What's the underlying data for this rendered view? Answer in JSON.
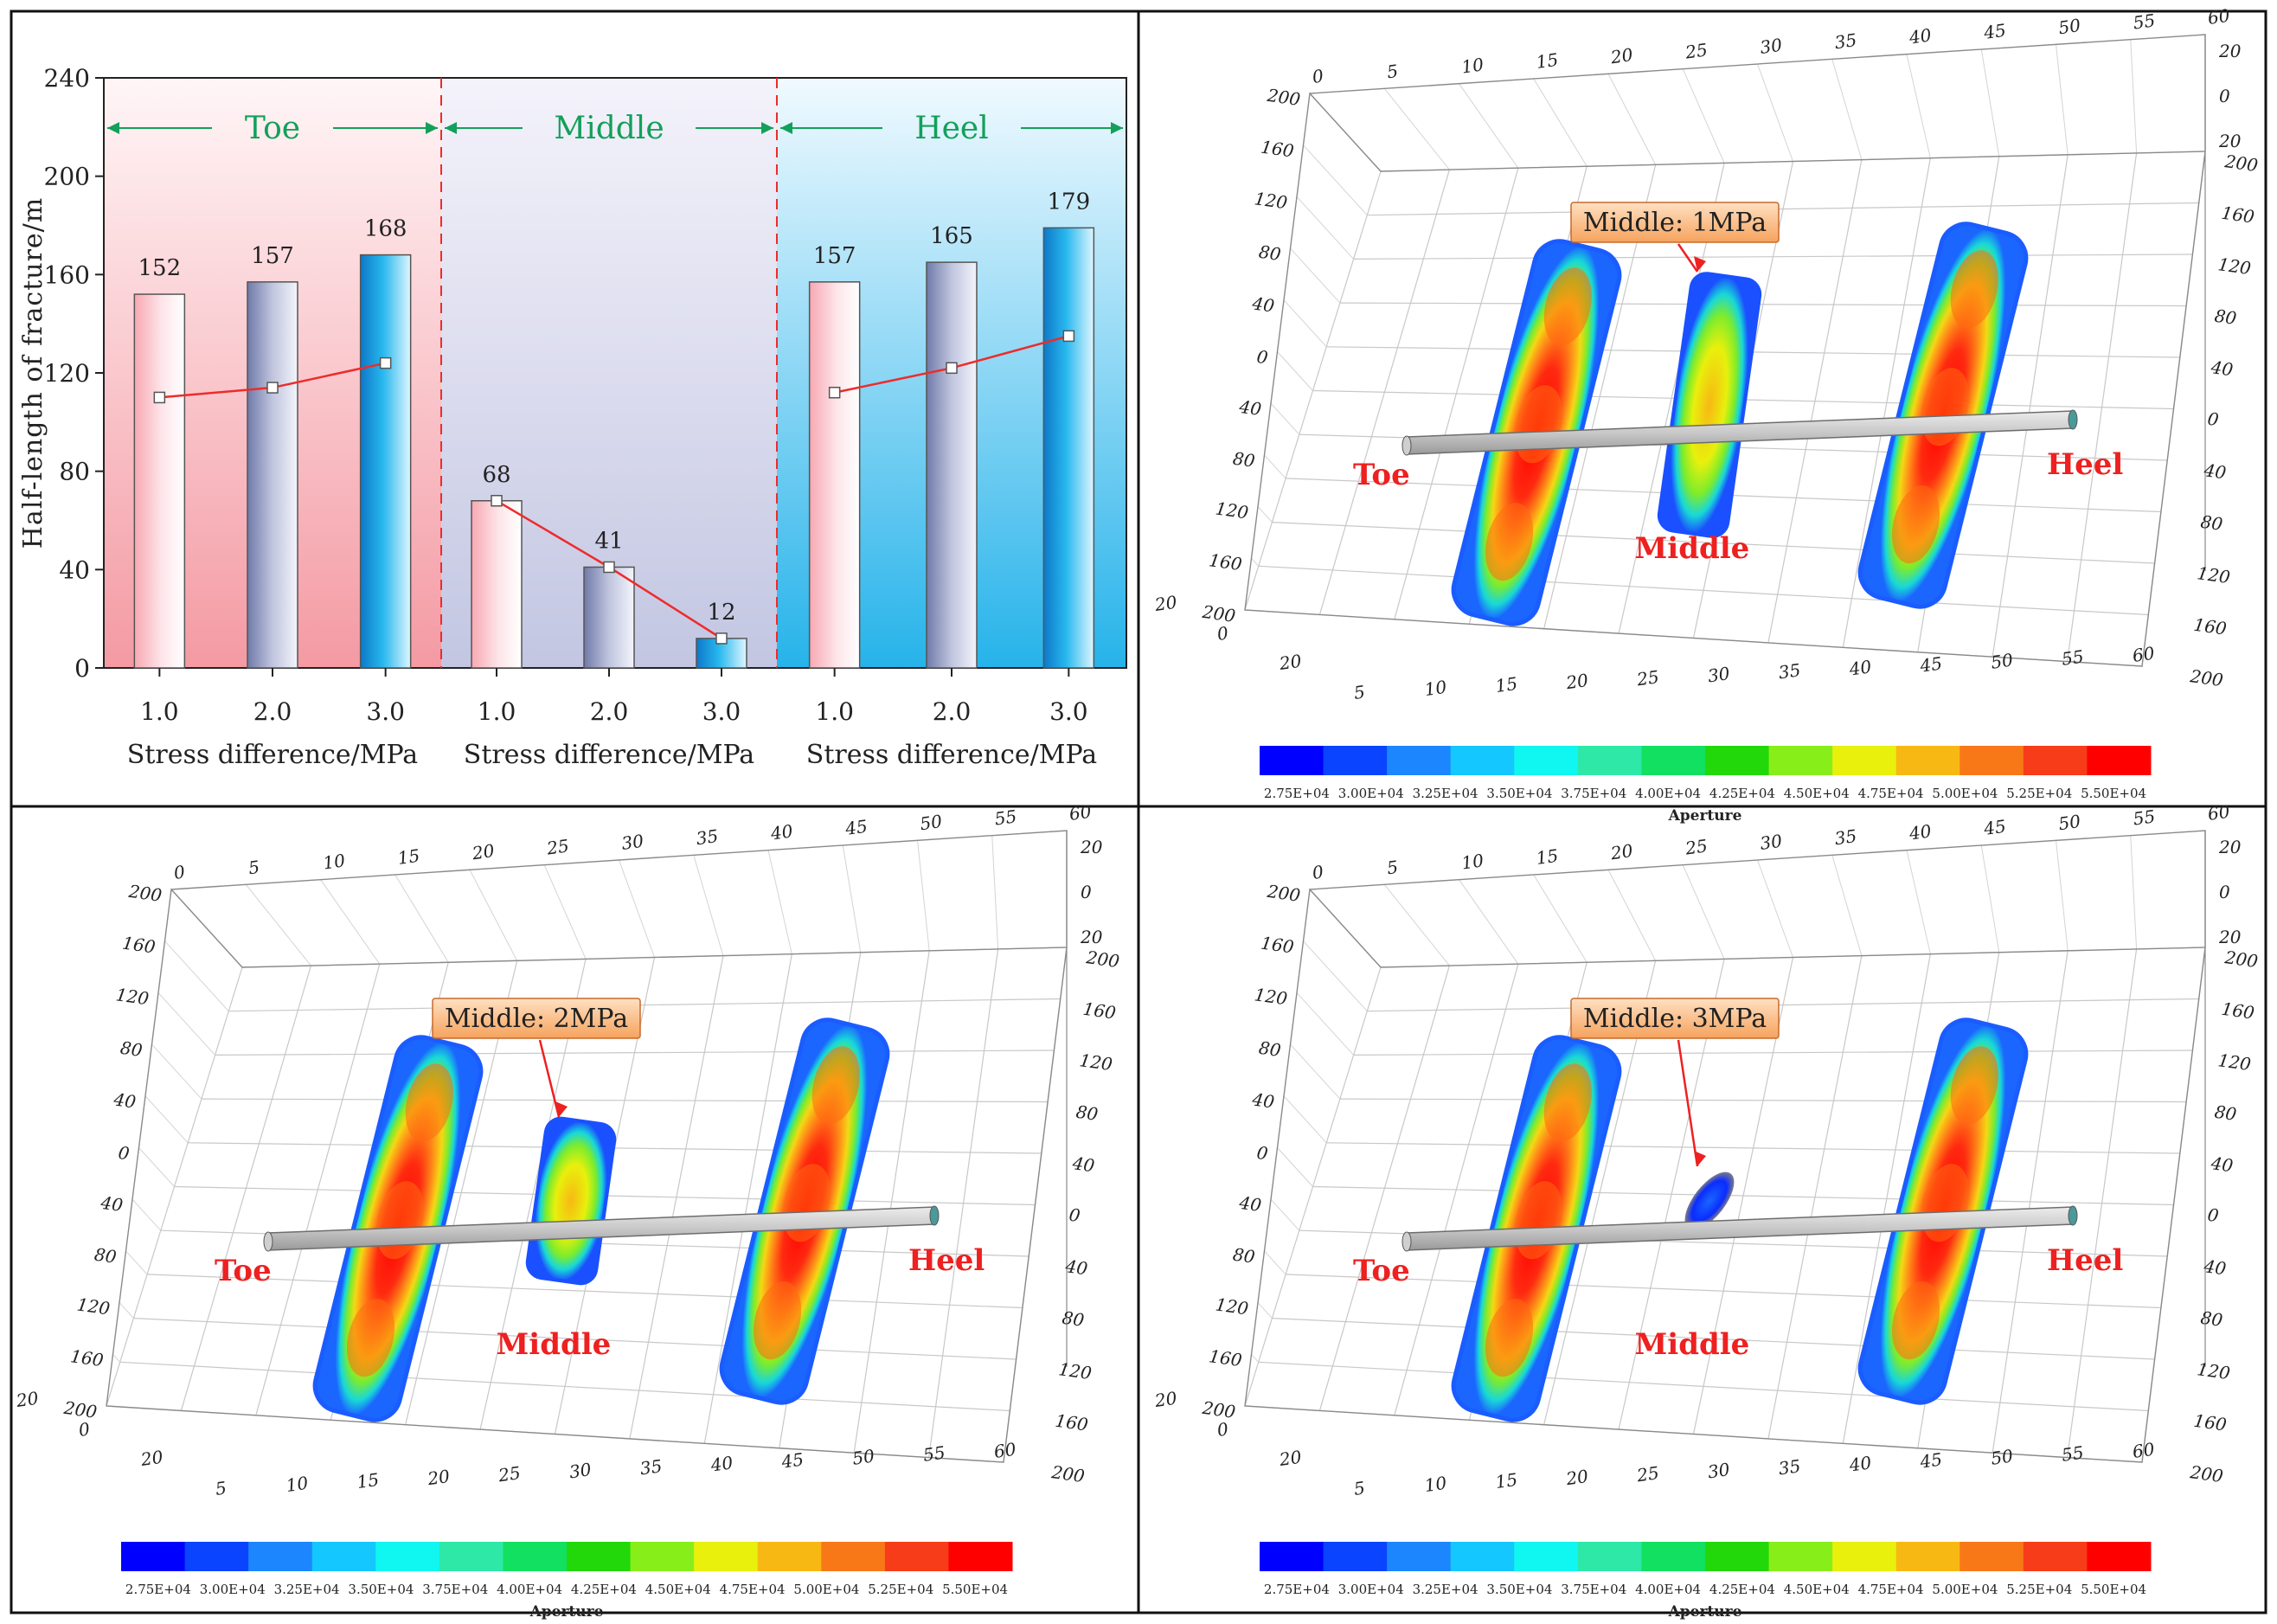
{
  "chart_data": [
    {
      "type": "bar",
      "title": "",
      "ylabel": "Half-length of fracture/m",
      "ylim": [
        0,
        240
      ],
      "yticks": [
        "0",
        "40",
        "80",
        "120",
        "160",
        "200",
        "240"
      ],
      "groups": [
        {
          "name": "Toe",
          "xlabel": "Stress difference/MPa",
          "categories": [
            "1.0",
            "2.0",
            "3.0"
          ],
          "values": [
            152,
            157,
            168
          ],
          "value_labels": [
            "152",
            "157",
            "168"
          ],
          "line_values": [
            110,
            114,
            124
          ]
        },
        {
          "name": "Middle",
          "xlabel": "Stress difference/MPa",
          "categories": [
            "1.0",
            "2.0",
            "3.0"
          ],
          "values": [
            68,
            41,
            12
          ],
          "value_labels": [
            "68",
            "41",
            "12"
          ],
          "line_values": [
            68,
            41,
            12
          ]
        },
        {
          "name": "Heel",
          "xlabel": "Stress difference/MPa",
          "categories": [
            "1.0",
            "2.0",
            "3.0"
          ],
          "values": [
            157,
            165,
            179
          ],
          "value_labels": [
            "157",
            "165",
            "179"
          ],
          "line_values": [
            112,
            122,
            135
          ]
        }
      ],
      "colors": {
        "toe_bg": "#f6a0a8",
        "middle_bg": "#cfd0e8",
        "heel_bg": "#35b8ea",
        "label_green": "#13a05a",
        "line_red": "#ee2b2b"
      }
    },
    {
      "type": "heatmap",
      "panels": [
        {
          "callout": "Middle: 1MPa",
          "middle_scale": 1.0
        },
        {
          "callout": "Middle: 2MPa",
          "middle_scale": 0.62
        },
        {
          "callout": "Middle: 3MPa",
          "middle_scale": 0.18
        }
      ],
      "fracture_labels": [
        "Toe",
        "Middle",
        "Heel"
      ],
      "top_ticks": [
        "0",
        "5",
        "10",
        "15",
        "20",
        "25",
        "30",
        "35",
        "40",
        "45",
        "50",
        "55",
        "60"
      ],
      "left_ticks": [
        "200",
        "160",
        "120",
        "80",
        "40",
        "0",
        "40",
        "80",
        "120",
        "160",
        "200"
      ],
      "right_ticks": [
        "200",
        "160",
        "120",
        "80",
        "40",
        "0",
        "40",
        "80",
        "120",
        "160",
        "200"
      ],
      "right_top_ticks": [
        "20",
        "0",
        "20"
      ],
      "bottom_ticks": [
        "20",
        "0",
        "20",
        "5",
        "10",
        "15",
        "20",
        "25",
        "30",
        "35",
        "40",
        "45",
        "50",
        "55",
        "60"
      ],
      "colorbar": {
        "title": "Aperture",
        "labels": [
          "2.75E+04",
          "3.00E+04",
          "3.25E+04",
          "3.50E+04",
          "3.75E+04",
          "4.00E+04",
          "4.25E+04",
          "4.50E+04",
          "4.75E+04",
          "5.00E+04",
          "5.25E+04",
          "5.50E+04"
        ],
        "colors": [
          "#0000ff",
          "#0a44ff",
          "#1c86ff",
          "#14c8ff",
          "#10f6f0",
          "#2ee8a8",
          "#12e060",
          "#22d80a",
          "#88ee1a",
          "#e8f00c",
          "#f8b814",
          "#f87818",
          "#f63c18",
          "#fe0000"
        ]
      }
    }
  ]
}
